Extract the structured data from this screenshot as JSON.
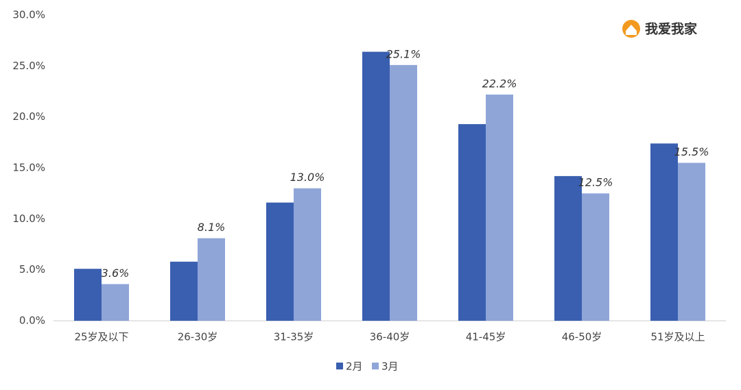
{
  "chart_data": {
    "type": "bar",
    "logo_text": "我爱我家",
    "categories": [
      "25岁及以下",
      "26-30岁",
      "31-35岁",
      "36-40岁",
      "41-45岁",
      "46-50岁",
      "51岁及以上"
    ],
    "series": [
      {
        "name": "2月",
        "color": "#3a5fb0",
        "values": [
          5.1,
          5.8,
          11.6,
          26.4,
          19.3,
          14.2,
          17.4
        ]
      },
      {
        "name": "3月",
        "color": "#8fa5d8",
        "values": [
          3.6,
          8.1,
          13.0,
          25.1,
          22.2,
          12.5,
          15.5
        ],
        "value_labels": [
          "3.6%",
          "8.1%",
          "13.0%",
          "25.1%",
          "22.2%",
          "12.5%",
          "15.5%"
        ]
      }
    ],
    "ylim": [
      0,
      30
    ],
    "yticks": [
      {
        "value": 0,
        "label": "0.0%"
      },
      {
        "value": 5,
        "label": "5.0%"
      },
      {
        "value": 10,
        "label": "10.0%"
      },
      {
        "value": 15,
        "label": "15.0%"
      },
      {
        "value": 20,
        "label": "20.0%"
      },
      {
        "value": 25,
        "label": "25.0%"
      },
      {
        "value": 30,
        "label": "30.0%"
      }
    ],
    "grid": false,
    "legend": "bottom"
  }
}
